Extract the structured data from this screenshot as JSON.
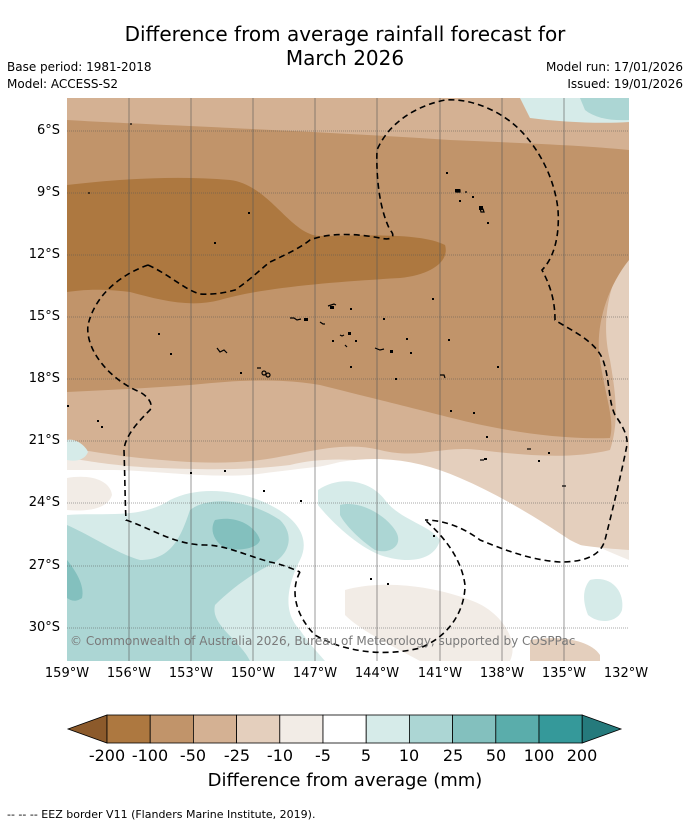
{
  "title_line1": "Difference from average rainfall forecast for",
  "title_line2": "March 2026",
  "base_period": "Base period: 1981-2018",
  "model": "Model: ACCESS-S2",
  "model_run": "Model run: 17/01/2026",
  "issued": "Issued: 19/01/2026",
  "copyright": "© Commonwealth of Australia 2026, Bureau of Meteorology, supported by COSPPac",
  "lat_labels": [
    "6°S",
    "9°S",
    "12°S",
    "15°S",
    "18°S",
    "21°S",
    "24°S",
    "27°S",
    "30°S"
  ],
  "lon_labels": [
    "159°W",
    "156°W",
    "153°W",
    "150°W",
    "147°W",
    "144°W",
    "141°W",
    "138°W",
    "135°W",
    "132°W"
  ],
  "colorbar": {
    "title": "Difference from average (mm)",
    "tick_labels": [
      "-200",
      "-100",
      "-50",
      "-25",
      "-10",
      "-5",
      "5",
      "10",
      "25",
      "50",
      "100",
      "200"
    ],
    "colors": [
      "#8c5a2b",
      "#ad7840",
      "#c1946a",
      "#d4b193",
      "#e4cfbd",
      "#f2ece6",
      "#ffffff",
      "#d6ebe9",
      "#acd6d4",
      "#83c0be",
      "#5aadab",
      "#35999a",
      "#257a7c"
    ]
  },
  "palette": {
    "brown_strong": "#ad7840",
    "brown_mid": "#c1946a",
    "brown_light": "#d4b193",
    "tan": "#e4cfbd",
    "cream": "#f2ece6",
    "teal_light": "#d6ebe9",
    "teal_mid": "#acd6d4",
    "teal_dark": "#83c0be"
  },
  "footnote": "--  --  -- EEZ border V11 (Flanders Marine Institute, 2019)."
}
